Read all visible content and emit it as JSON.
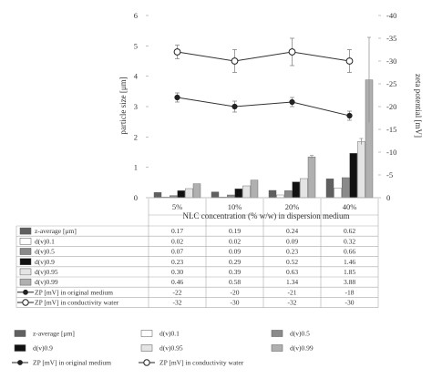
{
  "chart_data": {
    "type": "bar",
    "xlabel": "NLC concentration (% w/w) in dispersion medium",
    "ylabel": "particle size [μm]",
    "y2label": "zeta potential [mV]",
    "categories": [
      "5%",
      "10%",
      "20%",
      "40%"
    ],
    "ylim": [
      0,
      6
    ],
    "y_ticks": [
      "0",
      "1",
      "2",
      "3",
      "4",
      "5",
      "6"
    ],
    "y2lim": [
      0,
      -40
    ],
    "y2_ticks": [
      "0",
      "-5",
      "-10",
      "-15",
      "-20",
      "-25",
      "-30",
      "-35",
      "-40"
    ],
    "bar_series": [
      {
        "name": "z-average [μm]",
        "color": "#606060",
        "values": [
          0.17,
          0.19,
          0.24,
          0.62
        ],
        "errors": [
          0,
          0,
          0,
          0
        ]
      },
      {
        "name": "d(v)0.1",
        "color": "#ffffff",
        "values": [
          0.02,
          0.02,
          0.09,
          0.32
        ],
        "errors": [
          0,
          0,
          0,
          0
        ]
      },
      {
        "name": "d(v)0.5",
        "color": "#8a8a8a",
        "values": [
          0.07,
          0.09,
          0.23,
          0.66
        ],
        "errors": [
          0,
          0,
          0,
          0
        ]
      },
      {
        "name": "d(v)0.9",
        "color": "#111111",
        "values": [
          0.23,
          0.29,
          0.52,
          1.46
        ],
        "errors": [
          0,
          0,
          0,
          0
        ]
      },
      {
        "name": "d(v)0.95",
        "color": "#e4e4e4",
        "values": [
          0.3,
          0.39,
          0.63,
          1.85
        ],
        "errors": [
          0,
          0,
          0,
          0.1
        ]
      },
      {
        "name": "d(v)0.99",
        "color": "#b0b0b0",
        "values": [
          0.46,
          0.58,
          1.34,
          3.88
        ],
        "errors": [
          0,
          0,
          0.05,
          1.4
        ]
      }
    ],
    "line_series": [
      {
        "name": "ZP [mV] in original medium",
        "marker": "filled-circle",
        "values": [
          -22,
          -20,
          -21,
          -18
        ],
        "errors": [
          1,
          1.2,
          1,
          1
        ]
      },
      {
        "name": "ZP [mV] in conductivity water",
        "marker": "open-circle",
        "values": [
          -32,
          -30,
          -32,
          -30
        ],
        "errors": [
          1.5,
          2.5,
          3,
          2.5
        ]
      }
    ],
    "table_rows": [
      {
        "label": "z-average [μm]",
        "cells": [
          "0.17",
          "0.19",
          "0.24",
          "0.62"
        ]
      },
      {
        "label": "d(v)0.1",
        "cells": [
          "0.02",
          "0.02",
          "0.09",
          "0.32"
        ]
      },
      {
        "label": "d(v)0.5",
        "cells": [
          "0.07",
          "0.09",
          "0.23",
          "0.66"
        ]
      },
      {
        "label": "d(v)0.9",
        "cells": [
          "0.23",
          "0.29",
          "0.52",
          "1.46"
        ]
      },
      {
        "label": "d(v)0.95",
        "cells": [
          "0.30",
          "0.39",
          "0.63",
          "1.85"
        ]
      },
      {
        "label": "d(v)0.99",
        "cells": [
          "0.46",
          "0.58",
          "1.34",
          "3.88"
        ]
      },
      {
        "label": "ZP [mV] in original medium",
        "cells": [
          "-22",
          "-20",
          "-21",
          "-18"
        ]
      },
      {
        "label": "ZP [mV] in conductivity water",
        "cells": [
          "-32",
          "-30",
          "-32",
          "-30"
        ]
      }
    ],
    "legend_position": "bottom",
    "grid": false
  }
}
